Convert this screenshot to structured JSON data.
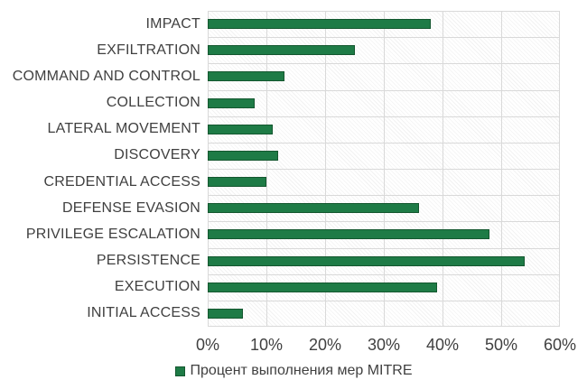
{
  "chart_data": {
    "type": "bar",
    "orientation": "horizontal",
    "title": "",
    "categories": [
      "IMPACT",
      "EXFILTRATION",
      "COMMAND AND CONTROL",
      "COLLECTION",
      "LATERAL MOVEMENT",
      "DISCOVERY",
      "CREDENTIAL ACCESS",
      "DEFENSE EVASION",
      "PRIVILEGE ESCALATION",
      "PERSISTENCE",
      "EXECUTION",
      "INITIAL ACCESS"
    ],
    "values": [
      38,
      25,
      13,
      8,
      11,
      12,
      10,
      36,
      48,
      54,
      39,
      6
    ],
    "value_unit": "%",
    "xlim": [
      0,
      60
    ],
    "x_ticks": [
      "0%",
      "10%",
      "20%",
      "30%",
      "40%",
      "50%",
      "60%"
    ],
    "grid": true,
    "legend_position": "bottom",
    "legend_label": "Процент выполнения мер MITRE",
    "colors": {
      "bar_fill": "#1e7b46",
      "bar_border": "#14572f",
      "gridline": "#d9d9d9",
      "text": "#404040",
      "background": "#ffffff"
    }
  }
}
